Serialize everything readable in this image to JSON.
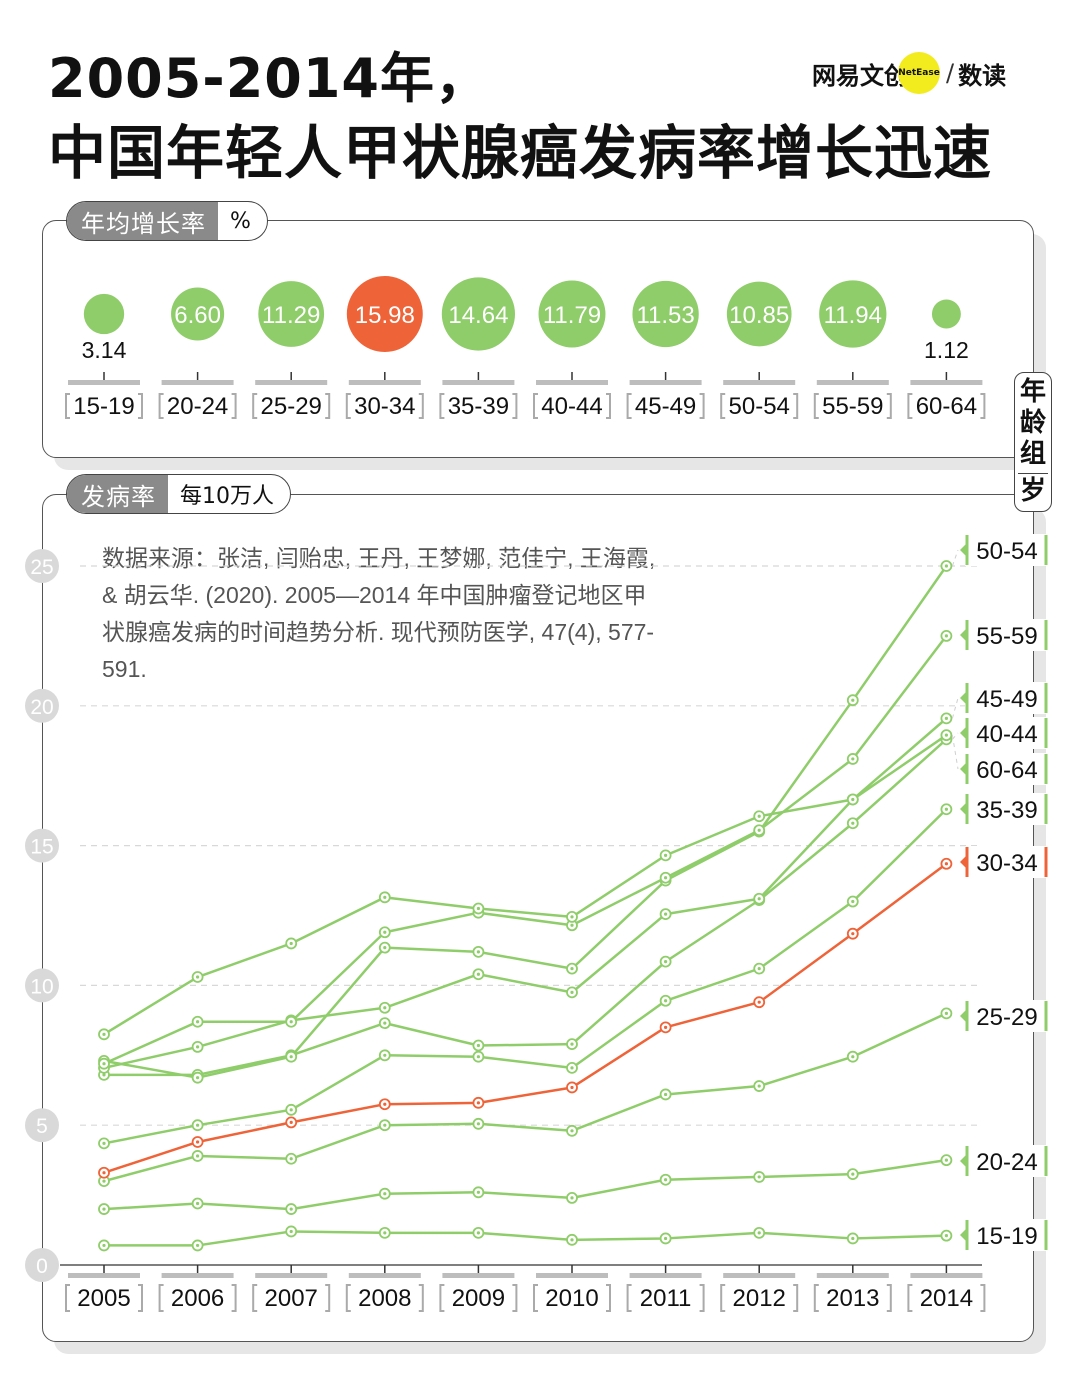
{
  "title": {
    "line1": "2005-2014年，",
    "line2": "中国年轻人甲状腺癌发病率增长迅速"
  },
  "brand": {
    "name": "网易文创",
    "dot_text": "NetEase",
    "slash": "/",
    "section": "数读"
  },
  "colors": {
    "green": "#8fcd6a",
    "orange": "#ef6338",
    "axis_gray": "#bdbdbd"
  },
  "growth_panel": {
    "label": "年均增长率",
    "unit": "%"
  },
  "incidence_panel": {
    "label": "发病率",
    "unit": "每10万人"
  },
  "side_tab": {
    "line1": "年",
    "line2": "龄",
    "line3": "组",
    "line4": "岁"
  },
  "source": "数据来源：张洁, 闫贻忠, 王丹, 王梦娜, 范佳宁, 王海霞, & 胡云华. (2020). 2005—2014 年中国肿瘤登记地区甲状腺癌发病的时间趋势分析. 现代预防医学, 47(4), 577-591.",
  "chart_data": [
    {
      "type": "bubble",
      "title": "年均增长率",
      "unit": "%",
      "categories": [
        "15-19",
        "20-24",
        "25-29",
        "30-34",
        "35-39",
        "40-44",
        "45-49",
        "50-54",
        "55-59",
        "60-64"
      ],
      "values": [
        3.14,
        6.6,
        11.29,
        15.98,
        14.64,
        11.79,
        11.53,
        10.85,
        11.94,
        1.12
      ],
      "value_labels": [
        "3.14",
        "6.60",
        "11.29",
        "15.98",
        "14.64",
        "11.79",
        "11.53",
        "10.85",
        "11.94",
        "1.12"
      ],
      "highlight": "30-34"
    },
    {
      "type": "line",
      "title": "发病率",
      "unit": "每10万人",
      "x": [
        "2005",
        "2006",
        "2007",
        "2008",
        "2009",
        "2010",
        "2011",
        "2012",
        "2013",
        "2014"
      ],
      "ylim": [
        0,
        25
      ],
      "yticks": [
        0,
        5,
        10,
        15,
        20,
        25
      ],
      "legend_title": "年龄组 岁",
      "highlight": "30-34",
      "series": [
        {
          "name": "15-19",
          "values": [
            0.7,
            0.7,
            1.2,
            1.15,
            1.15,
            0.9,
            0.95,
            1.15,
            0.95,
            1.05
          ]
        },
        {
          "name": "20-24",
          "values": [
            2.0,
            2.2,
            2.0,
            2.55,
            2.6,
            2.4,
            3.05,
            3.15,
            3.25,
            3.75
          ]
        },
        {
          "name": "25-29",
          "values": [
            3.0,
            3.9,
            3.8,
            5.0,
            5.05,
            4.8,
            6.1,
            6.4,
            7.45,
            9.0
          ]
        },
        {
          "name": "30-34",
          "values": [
            3.3,
            4.4,
            5.1,
            5.75,
            5.8,
            6.35,
            8.5,
            9.4,
            11.85,
            14.35
          ]
        },
        {
          "name": "35-39",
          "values": [
            4.35,
            5.0,
            5.55,
            7.5,
            7.45,
            7.05,
            9.45,
            10.6,
            13.0,
            16.3
          ]
        },
        {
          "name": "40-44",
          "values": [
            6.8,
            6.8,
            7.5,
            8.65,
            7.85,
            7.9,
            10.85,
            13.05,
            15.8,
            18.8
          ]
        },
        {
          "name": "45-49",
          "values": [
            7.05,
            7.8,
            8.75,
            9.2,
            10.4,
            9.75,
            12.55,
            13.1,
            16.65,
            19.55
          ]
        },
        {
          "name": "50-54",
          "values": [
            7.3,
            6.7,
            7.45,
            11.35,
            11.2,
            10.6,
            13.75,
            15.5,
            20.2,
            25.0
          ]
        },
        {
          "name": "55-59",
          "values": [
            7.2,
            8.7,
            8.7,
            11.9,
            12.6,
            12.15,
            13.85,
            15.55,
            18.1,
            22.5
          ]
        },
        {
          "name": "60-64",
          "values": [
            8.25,
            10.3,
            11.5,
            13.15,
            12.75,
            12.45,
            14.65,
            16.05,
            16.65,
            18.95
          ]
        }
      ]
    }
  ]
}
